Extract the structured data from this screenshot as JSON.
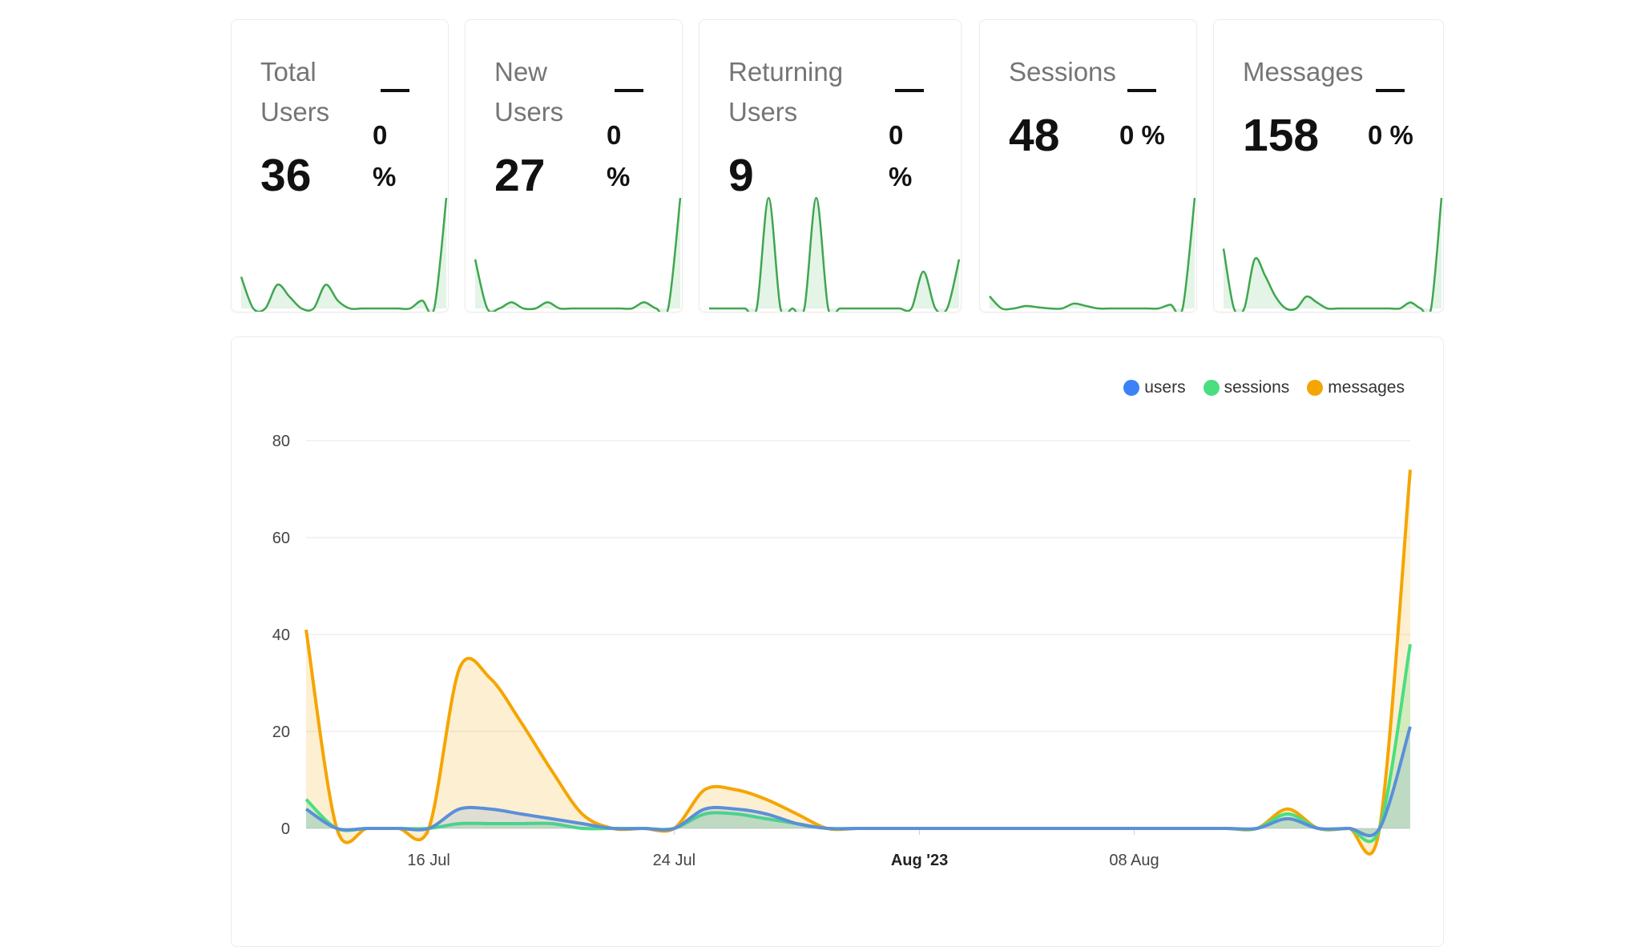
{
  "cards": [
    {
      "label_line1": "Total",
      "label_line2": "Users",
      "value": "36",
      "pct_value": "0",
      "pct_sign": "%",
      "spark": [
        8,
        0,
        0,
        6,
        3,
        0,
        0,
        6,
        2,
        0,
        0,
        0,
        0,
        0,
        0,
        2,
        0,
        28
      ]
    },
    {
      "label_line1": "New",
      "label_line2": "Users",
      "value": "27",
      "pct_value": "0",
      "pct_sign": "%",
      "spark": [
        8,
        0,
        0,
        1,
        0,
        0,
        1,
        0,
        0,
        0,
        0,
        0,
        0,
        0,
        1,
        0,
        0,
        18
      ]
    },
    {
      "label_line1": "Returning",
      "label_line2": "Users",
      "value": "9",
      "pct_value": "0",
      "pct_sign": "%",
      "spark": [
        0,
        0,
        0,
        0,
        0,
        9,
        0,
        0,
        0,
        9,
        0,
        0,
        0,
        0,
        0,
        0,
        0,
        0,
        3,
        0,
        0,
        4
      ]
    },
    {
      "label": "Sessions",
      "value": "48",
      "pct": "0 %",
      "spark": [
        10,
        0,
        0,
        2,
        1,
        0,
        0,
        4,
        2,
        0,
        0,
        0,
        0,
        0,
        0,
        3,
        0,
        90
      ]
    },
    {
      "label": "Messages",
      "value": "158",
      "pct": "0 %",
      "spark": [
        40,
        0,
        0,
        33,
        22,
        8,
        0,
        0,
        8,
        4,
        0,
        0,
        0,
        0,
        0,
        0,
        0,
        0,
        4,
        0,
        0,
        74
      ]
    }
  ],
  "legend": [
    {
      "name": "users",
      "color": "#3b82f6"
    },
    {
      "name": "sessions",
      "color": "#4ade80"
    },
    {
      "name": "messages",
      "color": "#f5a500"
    }
  ],
  "chart_data": {
    "type": "area",
    "x": [
      "2023-07-12",
      "2023-07-13",
      "2023-07-14",
      "2023-07-15",
      "2023-07-16",
      "2023-07-17",
      "2023-07-18",
      "2023-07-19",
      "2023-07-20",
      "2023-07-21",
      "2023-07-22",
      "2023-07-23",
      "2023-07-24",
      "2023-07-25",
      "2023-07-26",
      "2023-07-27",
      "2023-07-28",
      "2023-07-29",
      "2023-07-30",
      "2023-07-31",
      "2023-08-01",
      "2023-08-02",
      "2023-08-03",
      "2023-08-04",
      "2023-08-05",
      "2023-08-06",
      "2023-08-07",
      "2023-08-08",
      "2023-08-09",
      "2023-08-10",
      "2023-08-11",
      "2023-08-12",
      "2023-08-13",
      "2023-08-14",
      "2023-08-15",
      "2023-08-16",
      "2023-08-17"
    ],
    "series": [
      {
        "name": "users",
        "color": "#5b8fd9",
        "values": [
          4,
          0,
          0,
          0,
          0,
          4,
          4,
          3,
          2,
          1,
          0,
          0,
          0,
          4,
          4,
          3,
          1,
          0,
          0,
          0,
          0,
          0,
          0,
          0,
          0,
          0,
          0,
          0,
          0,
          0,
          0,
          0,
          2,
          0,
          0,
          0,
          21
        ]
      },
      {
        "name": "sessions",
        "color": "#4ade80",
        "values": [
          6,
          0,
          0,
          0,
          0,
          1,
          1,
          1,
          1,
          0,
          0,
          0,
          0,
          3,
          3,
          2,
          1,
          0,
          0,
          0,
          0,
          0,
          0,
          0,
          0,
          0,
          0,
          0,
          0,
          0,
          0,
          0,
          3,
          0,
          0,
          0,
          38
        ]
      },
      {
        "name": "messages",
        "color": "#f5a500",
        "values": [
          41,
          0,
          0,
          0,
          0,
          33,
          31,
          22,
          12,
          3,
          0,
          0,
          0,
          8,
          8,
          6,
          3,
          0,
          0,
          0,
          0,
          0,
          0,
          0,
          0,
          0,
          0,
          0,
          0,
          0,
          0,
          0,
          4,
          0,
          0,
          0,
          74
        ]
      }
    ],
    "xticks": [
      {
        "label": "16 Jul",
        "date": "2023-07-16",
        "bold": false
      },
      {
        "label": "24 Jul",
        "date": "2023-07-24",
        "bold": false
      },
      {
        "label": "Aug '23",
        "date": "2023-08-01",
        "bold": true
      },
      {
        "label": "08 Aug",
        "date": "2023-08-08",
        "bold": false
      }
    ],
    "yticks": [
      0,
      20,
      40,
      60,
      80
    ],
    "ylim": [
      0,
      80
    ],
    "grid": true,
    "legend_position": "top-right"
  }
}
